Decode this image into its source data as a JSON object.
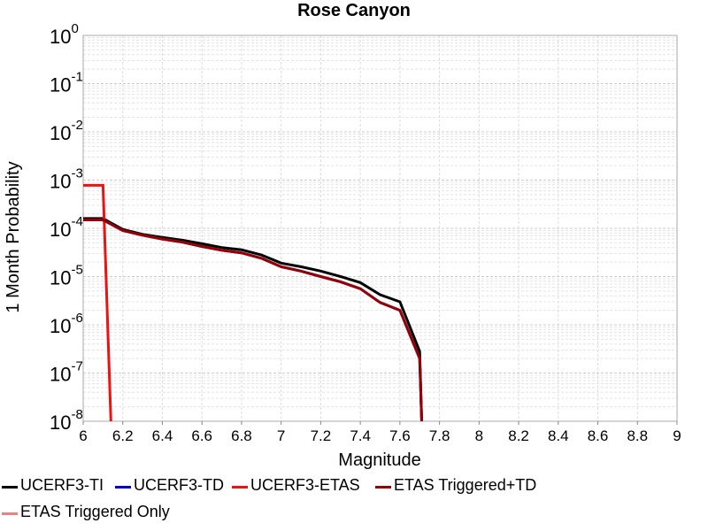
{
  "chart_data": {
    "type": "line",
    "title": "Rose Canyon",
    "xlabel": "Magnitude",
    "ylabel": "1 Month Probability",
    "xlim": [
      6,
      9
    ],
    "ylim": [
      1e-08,
      1
    ],
    "y_scale": "log",
    "grid": true,
    "legend_position": "bottom",
    "x_ticks": [
      "6",
      "6.2",
      "6.4",
      "6.6",
      "6.8",
      "7",
      "7.2",
      "7.4",
      "7.6",
      "7.8",
      "8",
      "8.2",
      "8.4",
      "8.6",
      "8.8",
      "9"
    ],
    "y_ticks": [
      {
        "base": "10",
        "exp": "0"
      },
      {
        "base": "10",
        "exp": "-1"
      },
      {
        "base": "10",
        "exp": "-2"
      },
      {
        "base": "10",
        "exp": "-3"
      },
      {
        "base": "10",
        "exp": "-4"
      },
      {
        "base": "10",
        "exp": "-5"
      },
      {
        "base": "10",
        "exp": "-6"
      },
      {
        "base": "10",
        "exp": "-7"
      },
      {
        "base": "10",
        "exp": "-8"
      }
    ],
    "series": [
      {
        "name": "UCERF3-TI",
        "color": "#000000",
        "x": [
          6.0,
          6.1,
          6.2,
          6.3,
          6.4,
          6.5,
          6.6,
          6.7,
          6.8,
          6.9,
          7.0,
          7.1,
          7.2,
          7.3,
          7.4,
          7.5,
          7.6,
          7.7,
          7.71
        ],
        "y": [
          0.00016,
          0.00016,
          9.5e-05,
          7.5e-05,
          6.5e-05,
          5.7e-05,
          4.8e-05,
          4e-05,
          3.6e-05,
          2.8e-05,
          1.9e-05,
          1.6e-05,
          1.3e-05,
          1e-05,
          7.5e-06,
          4.2e-06,
          3e-06,
          2.8e-07,
          1e-08
        ]
      },
      {
        "name": "UCERF3-TD",
        "color": "#0000cc",
        "x": [
          6.0,
          6.1,
          6.2,
          6.3,
          6.4,
          6.5,
          6.6,
          6.7,
          6.8,
          6.9,
          7.0,
          7.1,
          7.2,
          7.3,
          7.4,
          7.5,
          7.6,
          7.7,
          7.71
        ],
        "y": [
          0.00015,
          0.00015,
          9e-05,
          7.2e-05,
          6e-05,
          5.2e-05,
          4.2e-05,
          3.5e-05,
          3.1e-05,
          2.4e-05,
          1.6e-05,
          1.3e-05,
          1e-05,
          7.8e-06,
          5.6e-06,
          2.9e-06,
          2e-06,
          2e-07,
          1e-08
        ]
      },
      {
        "name": "UCERF3-ETAS",
        "color": "#ee1111",
        "x": [
          6.0,
          6.1,
          6.14
        ],
        "y": [
          0.00078,
          0.00078,
          1e-08
        ]
      },
      {
        "name": "ETAS Triggered+TD",
        "color": "#990000",
        "x": [
          6.0,
          6.1,
          6.2,
          6.3,
          6.4,
          6.5,
          6.6,
          6.7,
          6.8,
          6.9,
          7.0,
          7.1,
          7.2,
          7.3,
          7.4,
          7.5,
          7.6,
          7.7,
          7.71
        ],
        "y": [
          0.00015,
          0.00015,
          9e-05,
          7.2e-05,
          6e-05,
          5.2e-05,
          4.2e-05,
          3.5e-05,
          3.1e-05,
          2.4e-05,
          1.6e-05,
          1.3e-05,
          1e-05,
          7.8e-06,
          5.6e-06,
          2.9e-06,
          2e-06,
          2e-07,
          1e-08
        ]
      },
      {
        "name": "ETAS Triggered Only",
        "color": "#f08080",
        "x": [],
        "y": []
      }
    ]
  }
}
